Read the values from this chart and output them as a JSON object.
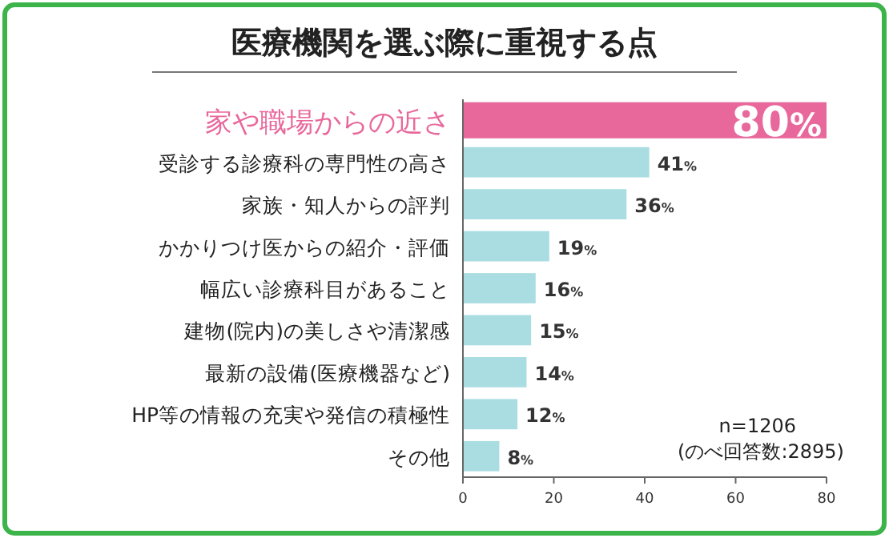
{
  "chart_data": {
    "type": "bar",
    "orientation": "horizontal",
    "title": "医療機関を選ぶ際に重視する点",
    "categories": [
      "家や職場からの近さ",
      "受診する診療科の専門性の高さ",
      "家族・知人からの評判",
      "かかりつけ医からの紹介・評価",
      "幅広い診療科目があること",
      "建物(院内)の美しさや清潔感",
      "最新の設備(医療機器など)",
      "HP等の情報の充実や発信の積極性",
      "その他"
    ],
    "values": [
      80,
      41,
      36,
      19,
      16,
      15,
      14,
      12,
      8
    ],
    "colors": [
      "#e9689c",
      "#a9dde1",
      "#a9dde1",
      "#a9dde1",
      "#a9dde1",
      "#a9dde1",
      "#a9dde1",
      "#a9dde1",
      "#a9dde1"
    ],
    "value_labels": [
      "80%",
      "41%",
      "36%",
      "19%",
      "16%",
      "15%",
      "14%",
      "12%",
      "8%"
    ],
    "xlim": [
      0,
      80
    ],
    "xticks": [
      0,
      20,
      40,
      60,
      80
    ],
    "annotations": [
      "n=1206",
      "(のべ回答数:2895)"
    ]
  }
}
